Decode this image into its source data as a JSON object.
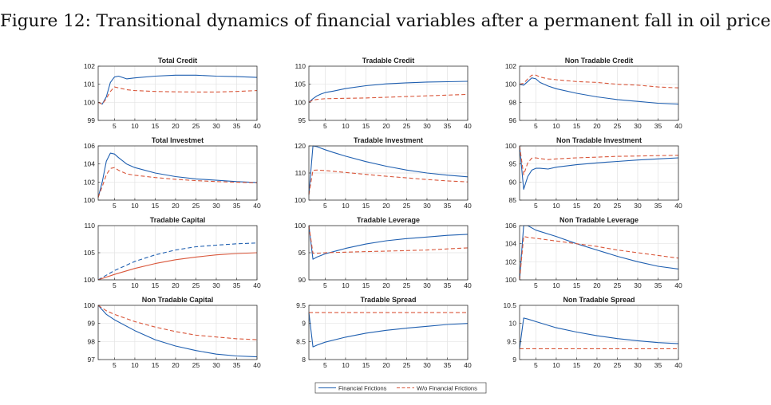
{
  "figure": {
    "title": "Figure 12: Transitional dynamics of financial variables after a permanent fall in oil price"
  },
  "legend": {
    "items": [
      {
        "label": "Financial Frictions",
        "color": "#1f5fb0",
        "style": "solid"
      },
      {
        "label": "W/o Financial Frictions",
        "color": "#d9573b",
        "style": "dashed"
      }
    ]
  },
  "chart_data": [
    {
      "type": "line",
      "title": "Total Credit",
      "ylim": [
        99,
        102
      ],
      "yticks": [
        99,
        100,
        101,
        102
      ],
      "xlim": [
        1,
        40
      ],
      "xticks": [
        5,
        10,
        15,
        20,
        25,
        30,
        35,
        40
      ],
      "series": [
        {
          "name": "Financial Frictions",
          "color": "#1f5fb0",
          "dash": false,
          "x": [
            1,
            2,
            3,
            4,
            5,
            6,
            8,
            10,
            15,
            20,
            25,
            30,
            35,
            40
          ],
          "y": [
            100,
            99.9,
            100.3,
            101.1,
            101.4,
            101.45,
            101.3,
            101.35,
            101.45,
            101.5,
            101.5,
            101.45,
            101.42,
            101.38
          ]
        },
        {
          "name": "W/o Financial Frictions",
          "color": "#d9573b",
          "dash": true,
          "x": [
            1,
            2,
            3,
            4,
            5,
            6,
            8,
            10,
            15,
            20,
            25,
            30,
            35,
            40
          ],
          "y": [
            100,
            99.9,
            100.2,
            100.6,
            100.85,
            100.8,
            100.7,
            100.65,
            100.6,
            100.58,
            100.57,
            100.57,
            100.6,
            100.65
          ]
        }
      ]
    },
    {
      "type": "line",
      "title": "Tradable Credit",
      "ylim": [
        95,
        110
      ],
      "yticks": [
        95,
        100,
        105,
        110
      ],
      "xlim": [
        1,
        40
      ],
      "xticks": [
        5,
        10,
        15,
        20,
        25,
        30,
        35,
        40
      ],
      "series": [
        {
          "name": "Financial Frictions",
          "color": "#1f5fb0",
          "dash": false,
          "x": [
            1,
            2,
            3,
            4,
            5,
            7,
            10,
            15,
            20,
            25,
            30,
            35,
            40
          ],
          "y": [
            100,
            101,
            101.8,
            102.3,
            102.7,
            103.1,
            103.8,
            104.6,
            105.1,
            105.4,
            105.6,
            105.7,
            105.8
          ]
        },
        {
          "name": "W/o Financial Frictions",
          "color": "#d9573b",
          "dash": true,
          "x": [
            1,
            2,
            3,
            5,
            10,
            15,
            20,
            25,
            30,
            35,
            40
          ],
          "y": [
            100,
            100.6,
            100.8,
            101,
            101.1,
            101.2,
            101.4,
            101.6,
            101.8,
            102,
            102.2
          ]
        }
      ]
    },
    {
      "type": "line",
      "title": "Non Tradable Credit",
      "ylim": [
        96,
        102
      ],
      "yticks": [
        96,
        98,
        100,
        102
      ],
      "xlim": [
        1,
        40
      ],
      "xticks": [
        5,
        10,
        15,
        20,
        25,
        30,
        35,
        40
      ],
      "series": [
        {
          "name": "Financial Frictions",
          "color": "#1f5fb0",
          "dash": false,
          "x": [
            1,
            2,
            3,
            4,
            5,
            6,
            8,
            10,
            15,
            20,
            25,
            30,
            35,
            40
          ],
          "y": [
            100,
            99.9,
            100.3,
            100.7,
            100.6,
            100.2,
            99.8,
            99.5,
            99,
            98.6,
            98.3,
            98.1,
            97.9,
            97.8
          ]
        },
        {
          "name": "W/o Financial Frictions",
          "color": "#d9573b",
          "dash": true,
          "x": [
            1,
            2,
            3,
            4,
            5,
            6,
            8,
            10,
            15,
            20,
            25,
            30,
            35,
            40
          ],
          "y": [
            100,
            100.1,
            100.6,
            101,
            101,
            100.8,
            100.6,
            100.5,
            100.3,
            100.2,
            100,
            99.9,
            99.7,
            99.6
          ]
        }
      ]
    },
    {
      "type": "line",
      "title": "Total Investmet",
      "ylim": [
        100,
        106
      ],
      "yticks": [
        100,
        102,
        104,
        106
      ],
      "xlim": [
        1,
        40
      ],
      "xticks": [
        5,
        10,
        15,
        20,
        25,
        30,
        35,
        40
      ],
      "series": [
        {
          "name": "Financial Frictions",
          "color": "#1f5fb0",
          "dash": false,
          "x": [
            1,
            2,
            3,
            4,
            5,
            6,
            8,
            10,
            15,
            20,
            25,
            30,
            35,
            40
          ],
          "y": [
            100.3,
            102,
            104.3,
            105.2,
            105.1,
            104.7,
            104,
            103.6,
            103,
            102.6,
            102.35,
            102.2,
            102.05,
            101.95
          ]
        },
        {
          "name": "W/o Financial Frictions",
          "color": "#d9573b",
          "dash": true,
          "x": [
            1,
            2,
            3,
            4,
            5,
            6,
            8,
            10,
            15,
            20,
            25,
            30,
            35,
            40
          ],
          "y": [
            100.3,
            101.5,
            102.8,
            103.5,
            103.6,
            103.3,
            102.9,
            102.75,
            102.5,
            102.3,
            102.15,
            102.05,
            101.98,
            101.92
          ]
        }
      ]
    },
    {
      "type": "line",
      "title": "Tradable Investment",
      "ylim": [
        100,
        120
      ],
      "yticks": [
        100,
        110,
        120
      ],
      "xlim": [
        1,
        40
      ],
      "xticks": [
        5,
        10,
        15,
        20,
        25,
        30,
        35,
        40
      ],
      "series": [
        {
          "name": "Financial Frictions",
          "color": "#1f5fb0",
          "dash": false,
          "x": [
            1,
            2,
            3,
            5,
            7,
            10,
            15,
            20,
            25,
            30,
            35,
            40
          ],
          "y": [
            102,
            120,
            119.7,
            118.6,
            117.6,
            116.2,
            114.2,
            112.5,
            111.1,
            110,
            109.2,
            108.6
          ]
        },
        {
          "name": "W/o Financial Frictions",
          "color": "#d9573b",
          "dash": true,
          "x": [
            1,
            2,
            3,
            5,
            10,
            15,
            20,
            25,
            30,
            35,
            40
          ],
          "y": [
            102,
            111,
            111.1,
            110.9,
            110.2,
            109.5,
            108.8,
            108.2,
            107.6,
            107.1,
            106.7
          ]
        }
      ]
    },
    {
      "type": "line",
      "title": "Non Tradable Investment",
      "ylim": [
        85,
        100
      ],
      "yticks": [
        85,
        90,
        95,
        100
      ],
      "xlim": [
        1,
        40
      ],
      "xticks": [
        5,
        10,
        15,
        20,
        25,
        30,
        35,
        40
      ],
      "series": [
        {
          "name": "Financial Frictions",
          "color": "#1f5fb0",
          "dash": false,
          "x": [
            1,
            2,
            3,
            4,
            5,
            6,
            8,
            10,
            15,
            20,
            25,
            30,
            35,
            40
          ],
          "y": [
            100,
            88,
            91.5,
            93.3,
            93.8,
            93.8,
            93.6,
            94.1,
            94.8,
            95.3,
            95.7,
            96.1,
            96.4,
            96.7
          ]
        },
        {
          "name": "W/o Financial Frictions",
          "color": "#d9573b",
          "dash": true,
          "x": [
            1,
            2,
            3,
            4,
            5,
            6,
            8,
            10,
            15,
            20,
            25,
            30,
            35,
            40
          ],
          "y": [
            100,
            92,
            95.3,
            96.6,
            96.7,
            96.5,
            96.2,
            96.4,
            96.7,
            96.9,
            97.1,
            97.2,
            97.3,
            97.4
          ]
        }
      ]
    },
    {
      "type": "line",
      "title": "Tradable Capital",
      "ylim": [
        100,
        110
      ],
      "yticks": [
        100,
        105,
        110
      ],
      "xlim": [
        1,
        40
      ],
      "xticks": [
        5,
        10,
        15,
        20,
        25,
        30,
        35,
        40
      ],
      "series": [
        {
          "name": "Financial Frictions",
          "color": "#1f5fb0",
          "dash": true,
          "x": [
            1,
            5,
            10,
            15,
            20,
            25,
            30,
            35,
            40
          ],
          "y": [
            100,
            101.7,
            103.4,
            104.6,
            105.5,
            106.1,
            106.4,
            106.65,
            106.8
          ]
        },
        {
          "name": "W/o Financial Frictions",
          "color": "#d9573b",
          "dash": false,
          "x": [
            1,
            5,
            10,
            15,
            20,
            25,
            30,
            35,
            40
          ],
          "y": [
            100,
            101,
            102.1,
            103,
            103.7,
            104.2,
            104.6,
            104.85,
            105
          ]
        }
      ]
    },
    {
      "type": "line",
      "title": "Tradable Leverage",
      "ylim": [
        90,
        100
      ],
      "yticks": [
        90,
        95,
        100
      ],
      "xlim": [
        1,
        40
      ],
      "xticks": [
        5,
        10,
        15,
        20,
        25,
        30,
        35,
        40
      ],
      "series": [
        {
          "name": "Financial Frictions",
          "color": "#1f5fb0",
          "dash": false,
          "x": [
            1,
            2,
            3,
            5,
            8,
            10,
            15,
            20,
            25,
            30,
            35,
            40
          ],
          "y": [
            100,
            93.8,
            94.2,
            94.8,
            95.4,
            95.8,
            96.6,
            97.2,
            97.6,
            97.9,
            98.2,
            98.4
          ]
        },
        {
          "name": "W/o Financial Frictions",
          "color": "#d9573b",
          "dash": true,
          "x": [
            1,
            2,
            3,
            5,
            10,
            15,
            20,
            25,
            30,
            35,
            40
          ],
          "y": [
            100,
            94.9,
            94.9,
            95,
            95.1,
            95.2,
            95.3,
            95.4,
            95.5,
            95.7,
            95.9
          ]
        }
      ]
    },
    {
      "type": "line",
      "title": "Non Tradable Leverage",
      "ylim": [
        100,
        106
      ],
      "yticks": [
        100,
        102,
        104,
        106
      ],
      "xlim": [
        1,
        40
      ],
      "xticks": [
        5,
        10,
        15,
        20,
        25,
        30,
        35,
        40
      ],
      "series": [
        {
          "name": "Financial Frictions",
          "color": "#1f5fb0",
          "dash": false,
          "x": [
            1,
            2,
            3,
            5,
            10,
            15,
            20,
            25,
            30,
            35,
            40
          ],
          "y": [
            100,
            106,
            106,
            105.5,
            104.8,
            104,
            103.3,
            102.6,
            102,
            101.5,
            101.2
          ]
        },
        {
          "name": "W/o Financial Frictions",
          "color": "#d9573b",
          "dash": true,
          "x": [
            1,
            2,
            3,
            5,
            10,
            15,
            20,
            25,
            30,
            35,
            40
          ],
          "y": [
            100,
            104.8,
            104.7,
            104.6,
            104.3,
            104,
            103.7,
            103.3,
            103,
            102.7,
            102.4
          ]
        }
      ]
    },
    {
      "type": "line",
      "title": "Non Tradable Capital",
      "ylim": [
        97,
        100
      ],
      "yticks": [
        97,
        98,
        99,
        100
      ],
      "xlim": [
        1,
        40
      ],
      "xticks": [
        5,
        10,
        15,
        20,
        25,
        30,
        35,
        40
      ],
      "series": [
        {
          "name": "Financial Frictions",
          "color": "#1f5fb0",
          "dash": false,
          "x": [
            1,
            3,
            5,
            10,
            15,
            20,
            25,
            30,
            35,
            40
          ],
          "y": [
            100,
            99.5,
            99.2,
            98.6,
            98.1,
            97.75,
            97.5,
            97.3,
            97.2,
            97.15
          ]
        },
        {
          "name": "W/o Financial Frictions",
          "color": "#d9573b",
          "dash": true,
          "x": [
            1,
            3,
            5,
            10,
            15,
            20,
            25,
            30,
            35,
            40
          ],
          "y": [
            100,
            99.7,
            99.5,
            99.1,
            98.8,
            98.55,
            98.35,
            98.25,
            98.15,
            98.1
          ]
        }
      ]
    },
    {
      "type": "line",
      "title": "Tradable Spread",
      "ylim": [
        8,
        9.5
      ],
      "yticks": [
        8,
        8.5,
        9,
        9.5
      ],
      "xlim": [
        1,
        40
      ],
      "xticks": [
        5,
        10,
        15,
        20,
        25,
        30,
        35,
        40
      ],
      "series": [
        {
          "name": "Financial Frictions",
          "color": "#1f5fb0",
          "dash": false,
          "x": [
            1,
            2,
            3,
            5,
            10,
            15,
            20,
            25,
            30,
            35,
            40
          ],
          "y": [
            9.3,
            8.35,
            8.4,
            8.48,
            8.62,
            8.73,
            8.81,
            8.87,
            8.92,
            8.97,
            9
          ]
        },
        {
          "name": "W/o Financial Frictions",
          "color": "#d9573b",
          "dash": true,
          "x": [
            1,
            40
          ],
          "y": [
            9.3,
            9.3
          ]
        }
      ]
    },
    {
      "type": "line",
      "title": "Non Tradable Spread",
      "ylim": [
        9,
        10.5
      ],
      "yticks": [
        9,
        9.5,
        10,
        10.5
      ],
      "xlim": [
        1,
        40
      ],
      "xticks": [
        5,
        10,
        15,
        20,
        25,
        30,
        35,
        40
      ],
      "series": [
        {
          "name": "Financial Frictions",
          "color": "#1f5fb0",
          "dash": false,
          "x": [
            1,
            2,
            3,
            5,
            10,
            15,
            20,
            25,
            30,
            35,
            40
          ],
          "y": [
            9.3,
            10.15,
            10.12,
            10.05,
            9.88,
            9.76,
            9.66,
            9.58,
            9.52,
            9.47,
            9.44
          ]
        },
        {
          "name": "W/o Financial Frictions",
          "color": "#d9573b",
          "dash": true,
          "x": [
            1,
            40
          ],
          "y": [
            9.3,
            9.3
          ]
        }
      ]
    }
  ]
}
